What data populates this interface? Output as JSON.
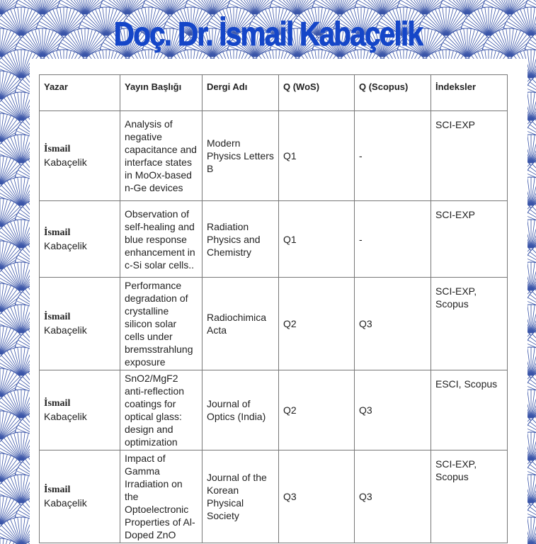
{
  "title": "Doç. Dr. İsmail Kabaçelik",
  "colors": {
    "accent": "#1546c8",
    "pattern": "#3a55a8"
  },
  "background_icon": "fan-pattern",
  "table": {
    "headers": [
      "Yazar",
      "Yayın Başlığı",
      "Dergi Adı",
      "Q (WoS)",
      "Q (Scopus)",
      "İndeksler"
    ],
    "rows": [
      {
        "author_first": "İsmail",
        "author_last": "Kabaçelik",
        "title": "Analysis of negative capacitance and interface states in MoOx-based n-Ge devices",
        "journal": "Modern Physics Letters B",
        "wos": "Q1",
        "scopus": "-",
        "index": "SCI-EXP"
      },
      {
        "author_first": "İsmail",
        "author_last": "Kabaçelik",
        "title": "Observation of self-healing and blue response enhancement in c-Si solar cells..",
        "journal": "Radiation Physics and Chemistry",
        "wos": "Q1",
        "scopus": "-",
        "index": "SCI-EXP"
      },
      {
        "author_first": "İsmail",
        "author_last": "Kabaçelik",
        "title": "Performance degradation of crystalline silicon solar cells under bremsstrahlung exposure",
        "journal": "Radiochimica Acta",
        "wos": "Q2",
        "scopus": "Q3",
        "index": "SCI-EXP, Scopus"
      },
      {
        "author_first": "İsmail",
        "author_last": "Kabaçelik",
        "title": "SnO2/MgF2 anti-reflection coatings for optical glass: design and optimization",
        "journal": "Journal of Optics (India)",
        "wos": "Q2",
        "scopus": "Q3",
        "index": "ESCI, Scopus"
      },
      {
        "author_first": "İsmail",
        "author_last": "Kabaçelik",
        "title": "Impact of Gamma Irradiation on the Optoelectronic Properties of Al-Doped ZnO",
        "journal": "Journal of the Korean Physical Society",
        "wos": "Q3",
        "scopus": "Q3",
        "index": "SCI-EXP, Scopus"
      }
    ]
  }
}
